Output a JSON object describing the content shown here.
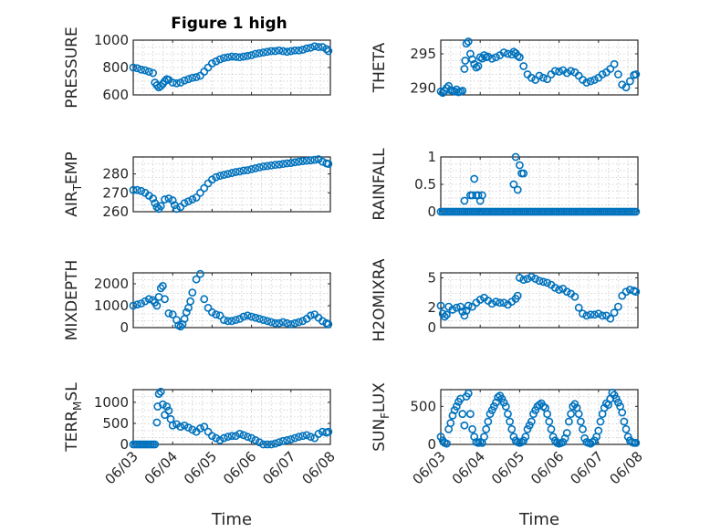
{
  "figure": {
    "title": "Figure 1 high",
    "marker_color": "#0072BD",
    "x_tick_labels": [
      "06/03",
      "06/04",
      "06/05",
      "06/06",
      "06/07",
      "06/08"
    ],
    "x_label": "Time"
  },
  "chart_data": [
    {
      "type": "scatter",
      "id": "pressure",
      "ylabel": "PRESSURE",
      "ylim": [
        600,
        1000
      ],
      "yticks": [
        600,
        800,
        1000
      ],
      "xlim": [
        0,
        5
      ],
      "grid": true,
      "xlabel": "",
      "x": [
        0,
        0.1,
        0.2,
        0.3,
        0.4,
        0.5,
        0.55,
        0.6,
        0.65,
        0.7,
        0.75,
        0.8,
        0.85,
        0.9,
        1.0,
        1.1,
        1.2,
        1.3,
        1.4,
        1.5,
        1.6,
        1.7,
        1.8,
        1.9,
        2.0,
        2.1,
        2.2,
        2.3,
        2.4,
        2.5,
        2.6,
        2.7,
        2.8,
        2.9,
        3.0,
        3.1,
        3.2,
        3.3,
        3.4,
        3.5,
        3.6,
        3.7,
        3.8,
        3.9,
        4.0,
        4.1,
        4.2,
        4.3,
        4.4,
        4.5,
        4.6,
        4.7,
        4.8,
        4.9,
        4.95
      ],
      "y": [
        800,
        795,
        785,
        780,
        770,
        760,
        690,
        670,
        655,
        665,
        680,
        700,
        715,
        710,
        690,
        685,
        690,
        705,
        715,
        725,
        730,
        740,
        770,
        800,
        830,
        845,
        860,
        870,
        875,
        880,
        878,
        875,
        880,
        885,
        890,
        900,
        905,
        910,
        915,
        920,
        920,
        925,
        920,
        915,
        920,
        925,
        925,
        930,
        940,
        945,
        955,
        950,
        950,
        935,
        920
      ]
    },
    {
      "type": "scatter",
      "id": "theta",
      "ylabel": "THETA",
      "ylim": [
        289,
        297
      ],
      "yticks": [
        290,
        295
      ],
      "xlim": [
        0,
        5
      ],
      "grid": true,
      "xlabel": "",
      "x": [
        0,
        0.05,
        0.1,
        0.15,
        0.2,
        0.25,
        0.3,
        0.35,
        0.4,
        0.45,
        0.5,
        0.55,
        0.6,
        0.62,
        0.65,
        0.7,
        0.75,
        0.8,
        0.85,
        0.9,
        0.95,
        1.0,
        1.05,
        1.1,
        1.15,
        1.2,
        1.3,
        1.4,
        1.5,
        1.6,
        1.7,
        1.8,
        1.85,
        1.9,
        1.95,
        2.0,
        2.1,
        2.2,
        2.3,
        2.4,
        2.5,
        2.6,
        2.7,
        2.8,
        2.9,
        3.0,
        3.1,
        3.2,
        3.3,
        3.4,
        3.5,
        3.6,
        3.7,
        3.8,
        3.9,
        4.0,
        4.1,
        4.2,
        4.3,
        4.4,
        4.5,
        4.6,
        4.7,
        4.8,
        4.9,
        4.95
      ],
      "y": [
        289.5,
        289.3,
        289.6,
        290,
        290.3,
        289.7,
        289.6,
        289.5,
        289.8,
        289.4,
        289.5,
        289.6,
        292.8,
        294,
        296.5,
        296.8,
        295,
        294.2,
        293.5,
        293,
        293.2,
        294.5,
        294.3,
        294.8,
        294.5,
        294.6,
        294.3,
        294.5,
        294.8,
        295.2,
        295,
        294.9,
        295.3,
        295.1,
        294.7,
        294.5,
        293.2,
        292,
        291.5,
        291.2,
        291.8,
        291.5,
        291.3,
        292,
        292.5,
        292.4,
        292.6,
        292.2,
        292.5,
        292.3,
        291.8,
        291.2,
        290.8,
        291,
        291.2,
        291.5,
        292,
        292.3,
        292.8,
        293.5,
        292,
        290.5,
        290.1,
        291,
        291.9,
        292
      ]
    },
    {
      "type": "scatter",
      "id": "air_temp",
      "ylabel": "AIR_TEMP",
      "ylim": [
        260,
        289
      ],
      "yticks": [
        260,
        270,
        280
      ],
      "xlim": [
        0,
        5
      ],
      "grid": true,
      "xlabel": "",
      "x": [
        0,
        0.1,
        0.2,
        0.3,
        0.4,
        0.5,
        0.55,
        0.6,
        0.65,
        0.7,
        0.8,
        0.9,
        1.0,
        1.05,
        1.1,
        1.2,
        1.3,
        1.4,
        1.5,
        1.6,
        1.7,
        1.8,
        1.9,
        2.0,
        2.1,
        2.2,
        2.3,
        2.4,
        2.5,
        2.6,
        2.7,
        2.8,
        2.9,
        3.0,
        3.1,
        3.2,
        3.3,
        3.4,
        3.5,
        3.6,
        3.7,
        3.8,
        3.9,
        4.0,
        4.1,
        4.2,
        4.3,
        4.4,
        4.5,
        4.6,
        4.7,
        4.8,
        4.9,
        4.95
      ],
      "y": [
        271.5,
        271.5,
        271,
        270,
        268.5,
        267,
        264.5,
        262.5,
        261.5,
        263,
        266.5,
        267,
        266,
        263.5,
        261.5,
        262.5,
        264.5,
        265.5,
        266.5,
        267.5,
        270,
        272.5,
        275,
        277,
        278.3,
        279,
        279.5,
        280,
        280.5,
        281,
        281.3,
        281.8,
        282,
        282.5,
        283,
        283.5,
        284,
        284.2,
        284.5,
        284.8,
        285,
        285.3,
        285.6,
        285.8,
        286.2,
        286.5,
        286.8,
        287,
        287.2,
        287.5,
        287.8,
        286.5,
        285.6,
        285.3
      ]
    },
    {
      "type": "scatter",
      "id": "rainfall",
      "ylabel": "RAINFALL",
      "ylim": [
        0,
        1
      ],
      "yticks": [
        0,
        0.5,
        1
      ],
      "xlim": [
        0,
        5
      ],
      "grid": true,
      "xlabel": "",
      "x": [
        0,
        0.05,
        0.1,
        0.15,
        0.2,
        0.25,
        0.3,
        0.35,
        0.4,
        0.45,
        0.5,
        0.55,
        0.6,
        0.65,
        0.7,
        0.75,
        0.8,
        0.85,
        0.9,
        0.95,
        1.0,
        1.05,
        1.1,
        1.15,
        1.2,
        1.25,
        1.3,
        1.35,
        1.4,
        1.45,
        1.5,
        1.55,
        1.6,
        1.65,
        1.7,
        1.75,
        1.8,
        1.85,
        1.9,
        1.95,
        2.0,
        2.05,
        2.1,
        2.15,
        2.2,
        2.25,
        2.3,
        2.35,
        2.4,
        2.45,
        2.5,
        2.55,
        2.6,
        2.65,
        2.7,
        2.75,
        2.8,
        2.85,
        2.9,
        2.95,
        3.0,
        3.05,
        3.1,
        3.15,
        3.2,
        3.25,
        3.3,
        3.35,
        3.4,
        3.45,
        3.5,
        3.55,
        3.6,
        3.65,
        3.7,
        3.75,
        3.8,
        3.85,
        3.9,
        3.95,
        4.0,
        4.05,
        4.1,
        4.15,
        4.2,
        4.25,
        4.3,
        4.35,
        4.4,
        4.45,
        4.5,
        4.55,
        4.6,
        4.65,
        4.7,
        4.75,
        4.8,
        4.85,
        4.9,
        4.95,
        0.6,
        0.75,
        0.8,
        0.85,
        0.9,
        0.95,
        1.0,
        1.05,
        1.85,
        1.9,
        1.95,
        2.0,
        2.05,
        2.1
      ],
      "y": [
        0,
        0,
        0,
        0,
        0,
        0,
        0,
        0,
        0,
        0,
        0,
        0,
        0,
        0,
        0,
        0,
        0,
        0,
        0,
        0,
        0,
        0,
        0,
        0,
        0,
        0,
        0,
        0,
        0,
        0,
        0,
        0,
        0,
        0,
        0,
        0,
        0,
        0,
        0,
        0,
        0,
        0,
        0,
        0,
        0,
        0,
        0,
        0,
        0,
        0,
        0,
        0,
        0,
        0,
        0,
        0,
        0,
        0,
        0,
        0,
        0,
        0,
        0,
        0,
        0,
        0,
        0,
        0,
        0,
        0,
        0,
        0,
        0,
        0,
        0,
        0,
        0,
        0,
        0,
        0,
        0,
        0,
        0,
        0,
        0,
        0,
        0,
        0,
        0,
        0,
        0,
        0,
        0,
        0,
        0,
        0,
        0,
        0,
        0,
        0,
        0.2,
        0.3,
        0.3,
        0.6,
        0.3,
        0.3,
        0.2,
        0.3,
        0.5,
        1.0,
        0.4,
        0.85,
        0.7,
        0.7
      ]
    },
    {
      "type": "scatter",
      "id": "mixdepth",
      "ylabel": "MIXDEPTH",
      "ylim": [
        0,
        2500
      ],
      "yticks": [
        0,
        1000,
        2000
      ],
      "xlim": [
        0,
        5
      ],
      "grid": true,
      "xlabel": "",
      "x": [
        0,
        0.1,
        0.2,
        0.3,
        0.4,
        0.5,
        0.55,
        0.6,
        0.65,
        0.7,
        0.75,
        0.8,
        0.9,
        1.0,
        1.1,
        1.15,
        1.2,
        1.25,
        1.3,
        1.35,
        1.4,
        1.45,
        1.5,
        1.6,
        1.7,
        1.8,
        1.9,
        2.0,
        2.1,
        2.2,
        2.3,
        2.4,
        2.5,
        2.6,
        2.7,
        2.8,
        2.9,
        3.0,
        3.1,
        3.2,
        3.3,
        3.4,
        3.5,
        3.6,
        3.7,
        3.8,
        3.9,
        4.0,
        4.1,
        4.2,
        4.3,
        4.4,
        4.5,
        4.6,
        4.7,
        4.8,
        4.9,
        4.95
      ],
      "y": [
        1000,
        1050,
        1100,
        1200,
        1300,
        1250,
        1150,
        1000,
        1400,
        1800,
        1900,
        1300,
        650,
        600,
        350,
        100,
        50,
        150,
        400,
        700,
        900,
        1200,
        1600,
        2200,
        2450,
        1300,
        900,
        700,
        600,
        550,
        350,
        300,
        300,
        350,
        400,
        500,
        550,
        500,
        450,
        400,
        350,
        300,
        250,
        200,
        200,
        250,
        200,
        150,
        200,
        250,
        300,
        400,
        550,
        600,
        450,
        300,
        200,
        150
      ]
    },
    {
      "type": "scatter",
      "id": "h2omixra",
      "ylabel": "H2OMIXRA",
      "ylim": [
        0,
        5.5
      ],
      "yticks": [
        0,
        2,
        5
      ],
      "xlim": [
        0,
        5
      ],
      "grid": true,
      "xlabel": "",
      "x": [
        0,
        0.05,
        0.1,
        0.15,
        0.2,
        0.3,
        0.4,
        0.5,
        0.55,
        0.6,
        0.65,
        0.7,
        0.8,
        0.9,
        1.0,
        1.1,
        1.2,
        1.3,
        1.4,
        1.5,
        1.6,
        1.7,
        1.8,
        1.9,
        1.95,
        2.0,
        2.1,
        2.2,
        2.3,
        2.4,
        2.5,
        2.6,
        2.7,
        2.8,
        2.9,
        3.0,
        3.1,
        3.2,
        3.3,
        3.4,
        3.5,
        3.6,
        3.7,
        3.8,
        3.9,
        4.0,
        4.1,
        4.2,
        4.3,
        4.4,
        4.5,
        4.6,
        4.7,
        4.8,
        4.9,
        4.95
      ],
      "y": [
        2.2,
        1.4,
        1.1,
        1.3,
        2.1,
        1.8,
        2.0,
        2.1,
        1.6,
        1.2,
        1.7,
        2.2,
        2.1,
        2.5,
        2.8,
        3.0,
        2.7,
        2.4,
        2.6,
        2.5,
        2.5,
        2.3,
        2.6,
        2.9,
        3.2,
        5.0,
        4.8,
        4.9,
        5.1,
        4.9,
        4.7,
        4.6,
        4.5,
        4.3,
        4.0,
        3.8,
        3.9,
        3.6,
        3.4,
        3.1,
        2.0,
        1.4,
        1.2,
        1.3,
        1.3,
        1.4,
        1.2,
        1.2,
        0.9,
        1.5,
        2.1,
        3.2,
        3.6,
        3.8,
        3.7,
        3.6
      ]
    },
    {
      "type": "scatter",
      "id": "terr_msl",
      "ylabel": "TERR_MSL",
      "ylim": [
        0,
        1300
      ],
      "yticks": [
        0,
        500,
        1000
      ],
      "xlim": [
        0,
        5
      ],
      "grid": true,
      "xlabel": "Time",
      "xticks": [
        "06/03",
        "06/04",
        "06/05",
        "06/06",
        "06/07",
        "06/08"
      ],
      "x": [
        0,
        0.05,
        0.1,
        0.15,
        0.2,
        0.25,
        0.3,
        0.35,
        0.4,
        0.45,
        0.5,
        0.55,
        0.6,
        0.62,
        0.65,
        0.7,
        0.75,
        0.8,
        0.85,
        0.9,
        0.95,
        1.0,
        1.1,
        1.2,
        1.3,
        1.4,
        1.5,
        1.6,
        1.7,
        1.8,
        1.9,
        2.0,
        2.1,
        2.2,
        2.3,
        2.4,
        2.5,
        2.6,
        2.7,
        2.8,
        2.9,
        3.0,
        3.1,
        3.2,
        3.3,
        3.4,
        3.5,
        3.6,
        3.7,
        3.8,
        3.9,
        4.0,
        4.1,
        4.2,
        4.3,
        4.4,
        4.5,
        4.6,
        4.7,
        4.8,
        4.9,
        4.95
      ],
      "y": [
        0,
        0,
        0,
        0,
        0,
        0,
        0,
        0,
        0,
        0,
        0,
        0,
        520,
        900,
        1200,
        1250,
        950,
        700,
        900,
        800,
        600,
        450,
        480,
        420,
        450,
        400,
        350,
        300,
        380,
        420,
        300,
        200,
        150,
        100,
        150,
        180,
        200,
        200,
        250,
        220,
        180,
        150,
        100,
        50,
        0,
        0,
        0,
        20,
        50,
        80,
        100,
        120,
        150,
        180,
        200,
        220,
        180,
        150,
        250,
        300,
        280,
        300
      ]
    },
    {
      "type": "scatter",
      "id": "sun_flux",
      "ylabel": "SUN_FLUX",
      "ylim": [
        0,
        720
      ],
      "yticks": [
        0,
        500
      ],
      "xlim": [
        0,
        5
      ],
      "grid": true,
      "xlabel": "Time",
      "xticks": [
        "06/03",
        "06/04",
        "06/05",
        "06/06",
        "06/07",
        "06/08"
      ],
      "x": [
        0,
        0.05,
        0.1,
        0.15,
        0.2,
        0.25,
        0.3,
        0.35,
        0.4,
        0.45,
        0.5,
        0.55,
        0.6,
        0.65,
        0.7,
        0.75,
        0.8,
        0.85,
        0.9,
        0.95,
        1.0,
        1.05,
        1.1,
        1.15,
        1.2,
        1.25,
        1.3,
        1.35,
        1.4,
        1.45,
        1.5,
        1.55,
        1.6,
        1.65,
        1.7,
        1.75,
        1.8,
        1.85,
        1.9,
        1.95,
        2.0,
        2.05,
        2.1,
        2.15,
        2.2,
        2.25,
        2.3,
        2.35,
        2.4,
        2.45,
        2.5,
        2.55,
        2.6,
        2.65,
        2.7,
        2.75,
        2.8,
        2.85,
        2.9,
        2.95,
        3.0,
        3.05,
        3.1,
        3.15,
        3.2,
        3.25,
        3.3,
        3.35,
        3.4,
        3.45,
        3.5,
        3.55,
        3.6,
        3.65,
        3.7,
        3.75,
        3.8,
        3.85,
        3.9,
        3.95,
        4.0,
        4.05,
        4.1,
        4.15,
        4.2,
        4.25,
        4.3,
        4.35,
        4.4,
        4.45,
        4.5,
        4.55,
        4.6,
        4.65,
        4.7,
        4.75,
        4.8,
        4.85,
        4.9,
        4.95
      ],
      "y": [
        100,
        50,
        20,
        10,
        200,
        280,
        380,
        450,
        500,
        560,
        600,
        400,
        250,
        630,
        670,
        400,
        200,
        100,
        30,
        20,
        30,
        20,
        100,
        200,
        300,
        400,
        450,
        500,
        550,
        620,
        640,
        600,
        550,
        500,
        400,
        300,
        200,
        100,
        50,
        30,
        20,
        30,
        50,
        100,
        200,
        250,
        300,
        400,
        450,
        500,
        520,
        540,
        500,
        480,
        400,
        300,
        200,
        100,
        50,
        20,
        10,
        20,
        30,
        80,
        150,
        300,
        400,
        500,
        530,
        480,
        400,
        300,
        200,
        80,
        30,
        20,
        10,
        30,
        50,
        100,
        180,
        300,
        400,
        480,
        540,
        520,
        600,
        680,
        650,
        600,
        550,
        500,
        420,
        300,
        200,
        100,
        50,
        30,
        20,
        20
      ]
    }
  ]
}
